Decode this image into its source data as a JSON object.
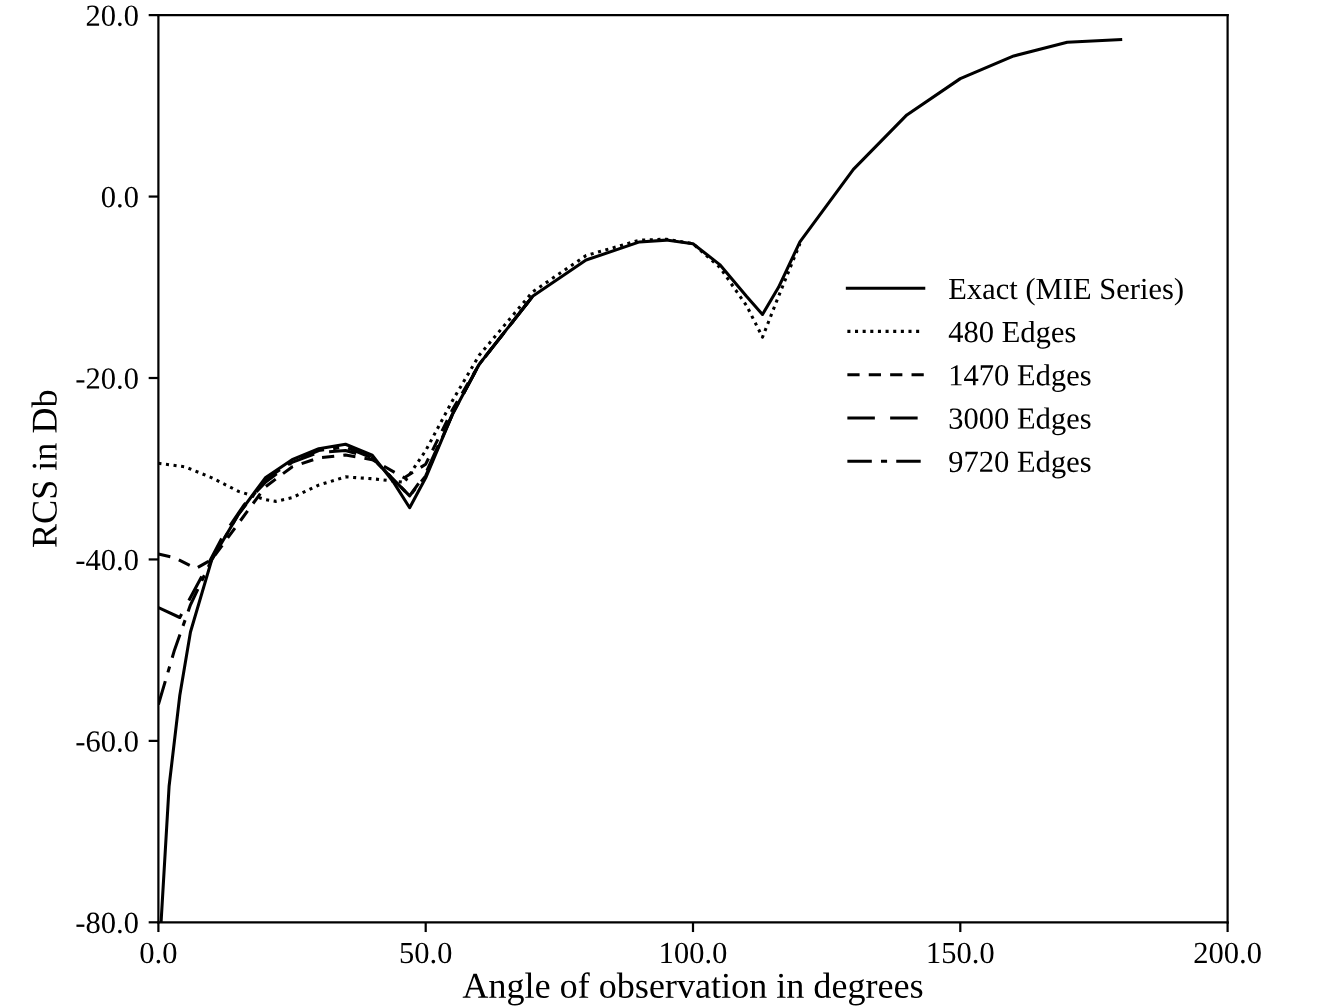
{
  "chart_data": {
    "type": "line",
    "xlabel": "Angle of observation in degrees",
    "ylabel": "RCS in Db",
    "xlim": [
      0,
      200
    ],
    "ylim": [
      -80,
      20
    ],
    "xticks": [
      {
        "value": 0,
        "label": "0.0"
      },
      {
        "value": 50,
        "label": "50.0"
      },
      {
        "value": 100,
        "label": "100.0"
      },
      {
        "value": 150,
        "label": "150.0"
      },
      {
        "value": 200,
        "label": "200.0"
      }
    ],
    "yticks": [
      {
        "value": -80,
        "label": "-80.0"
      },
      {
        "value": -60,
        "label": "-60.0"
      },
      {
        "value": -40,
        "label": "-40.0"
      },
      {
        "value": -20,
        "label": "-20.0"
      },
      {
        "value": 0,
        "label": "0.0"
      },
      {
        "value": 20,
        "label": "20.0"
      }
    ],
    "grid": false,
    "legend": "right",
    "marker": "none",
    "series": [
      {
        "name": "Exact (MIE Series)",
        "color": "#000000",
        "line_style": "solid",
        "x": [
          0.5,
          2,
          4,
          6,
          10,
          15,
          20,
          25,
          30,
          35,
          40,
          44,
          47,
          50,
          55,
          60,
          70,
          80,
          90,
          95,
          100,
          105,
          110,
          113,
          116,
          120,
          130,
          140,
          150,
          160,
          170,
          180
        ],
        "values": [
          -80,
          -65,
          -55,
          -48,
          -40,
          -35,
          -31,
          -29,
          -27.8,
          -27.3,
          -28.5,
          -31.5,
          -34.3,
          -31,
          -24,
          -18.5,
          -11,
          -7,
          -5,
          -4.8,
          -5.2,
          -7.5,
          -11,
          -13,
          -10,
          -5,
          3,
          9,
          13,
          15.5,
          17,
          17.3
        ]
      },
      {
        "name": "480 Edges",
        "color": "#000000",
        "line_style": "dotted",
        "x": [
          0,
          5,
          10,
          15,
          20,
          22,
          25,
          30,
          35,
          40,
          46,
          50,
          55,
          60,
          70,
          80,
          90,
          95,
          100,
          105,
          110,
          113,
          116,
          120
        ],
        "values": [
          -29.4,
          -29.8,
          -31,
          -32.5,
          -33.4,
          -33.6,
          -33.2,
          -31.8,
          -30.9,
          -31.1,
          -31.5,
          -28,
          -22.5,
          -17.5,
          -10.5,
          -6.5,
          -4.8,
          -4.7,
          -5.2,
          -7.8,
          -12,
          -15.5,
          -11,
          -5.2
        ]
      },
      {
        "name": "1470 Edges",
        "color": "#000000",
        "line_style": "dashed",
        "x": [
          0,
          3,
          7,
          10,
          15,
          20,
          25,
          30,
          35,
          40,
          46,
          50,
          55,
          60,
          70
        ],
        "values": [
          -39.4,
          -39.8,
          -41,
          -40,
          -36,
          -32,
          -29.8,
          -28.8,
          -28.5,
          -29,
          -31,
          -29.5,
          -23.5,
          -18.5,
          -11
        ]
      },
      {
        "name": "3000 Edges",
        "color": "#000000",
        "line_style": "long dashed",
        "x": [
          0,
          4,
          8,
          12,
          16,
          20,
          25,
          30,
          35,
          40,
          47,
          50,
          55,
          60,
          70
        ],
        "values": [
          -45.3,
          -46.4,
          -42,
          -37.5,
          -34,
          -31.5,
          -29.3,
          -28.2,
          -28,
          -28.8,
          -33,
          -30.5,
          -24,
          -18.5,
          -11
        ]
      },
      {
        "name": "9720 Edges",
        "color": "#000000",
        "line_style": "dash-dot",
        "x": [
          0,
          3,
          6,
          10,
          15,
          20,
          25,
          30,
          35,
          40,
          47,
          50,
          55,
          60,
          70
        ],
        "values": [
          -56,
          -50,
          -45,
          -40,
          -35,
          -31.2,
          -29.2,
          -28,
          -27.6,
          -28.8,
          -33,
          -30.8,
          -24,
          -18.5,
          -11
        ]
      }
    ]
  }
}
